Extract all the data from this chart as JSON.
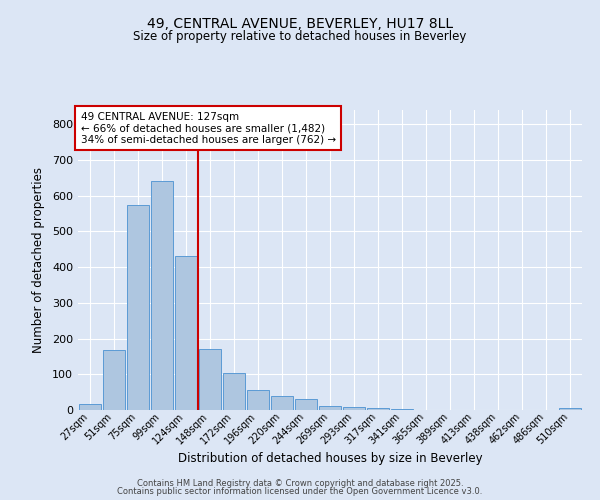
{
  "title1": "49, CENTRAL AVENUE, BEVERLEY, HU17 8LL",
  "title2": "Size of property relative to detached houses in Beverley",
  "xlabel": "Distribution of detached houses by size in Beverley",
  "ylabel": "Number of detached properties",
  "categories": [
    "27sqm",
    "51sqm",
    "75sqm",
    "99sqm",
    "124sqm",
    "148sqm",
    "172sqm",
    "196sqm",
    "220sqm",
    "244sqm",
    "269sqm",
    "293sqm",
    "317sqm",
    "341sqm",
    "365sqm",
    "389sqm",
    "413sqm",
    "438sqm",
    "462sqm",
    "486sqm",
    "510sqm"
  ],
  "values": [
    18,
    168,
    575,
    642,
    430,
    170,
    103,
    55,
    38,
    30,
    12,
    8,
    5,
    3,
    0,
    0,
    0,
    0,
    0,
    0,
    5
  ],
  "bar_color": "#aec6e0",
  "bar_edge_color": "#5b9bd5",
  "vline_x": 4.5,
  "vline_color": "#cc0000",
  "annotation_title": "49 CENTRAL AVENUE: 127sqm",
  "annotation_line1": "← 66% of detached houses are smaller (1,482)",
  "annotation_line2": "34% of semi-detached houses are larger (762) →",
  "annotation_box_color": "#cc0000",
  "ylim": [
    0,
    840
  ],
  "yticks": [
    0,
    100,
    200,
    300,
    400,
    500,
    600,
    700,
    800
  ],
  "background_color": "#dce6f5",
  "grid_color": "#ffffff",
  "footer1": "Contains HM Land Registry data © Crown copyright and database right 2025.",
  "footer2": "Contains public sector information licensed under the Open Government Licence v3.0."
}
